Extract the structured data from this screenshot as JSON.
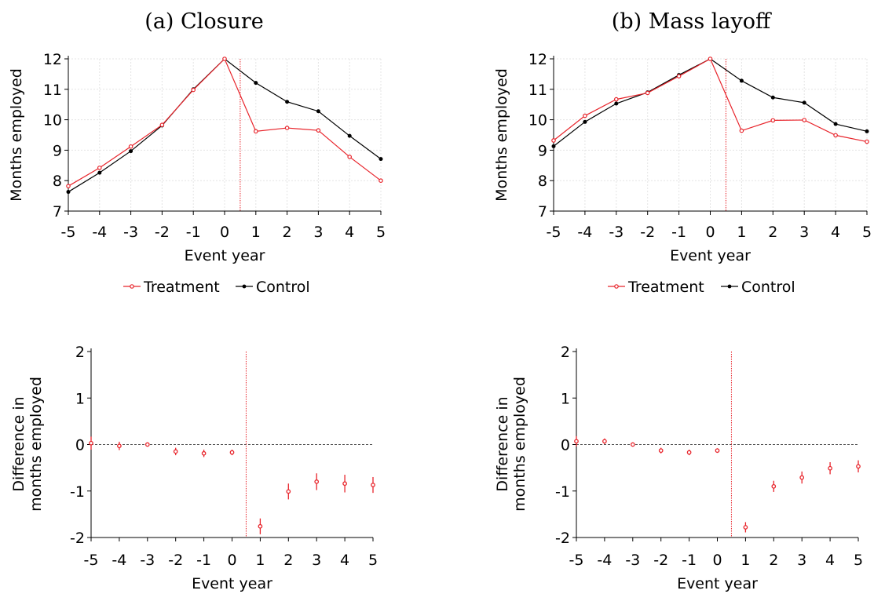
{
  "chart_data": [
    {
      "type": "line",
      "title": "(a) Closure",
      "xlabel": "Event year",
      "ylabel": "Months employed",
      "x": [
        -5,
        -4,
        -3,
        -2,
        -1,
        0,
        1,
        2,
        3,
        4,
        5
      ],
      "xlim": [
        -5,
        5
      ],
      "ylim": [
        7,
        12
      ],
      "yticks": [
        7,
        8,
        9,
        10,
        11,
        12
      ],
      "grid": true,
      "vline": 0.5,
      "legend": "bottom",
      "series": [
        {
          "name": "Treatment",
          "color": "#e8242b",
          "marker": "hollow-circle",
          "values": [
            7.82,
            8.42,
            9.12,
            9.83,
            10.98,
            12.0,
            9.62,
            9.73,
            9.65,
            8.78,
            8.0
          ]
        },
        {
          "name": "Control",
          "color": "#000000",
          "marker": "filled-circle",
          "values": [
            7.63,
            8.26,
            8.97,
            9.81,
            11.0,
            12.0,
            11.21,
            10.59,
            10.28,
            9.47,
            8.71
          ]
        }
      ]
    },
    {
      "type": "line",
      "title": "(b) Mass layoff",
      "xlabel": "Event year",
      "ylabel": "Months employed",
      "x": [
        -5,
        -4,
        -3,
        -2,
        -1,
        0,
        1,
        2,
        3,
        4,
        5
      ],
      "xlim": [
        -5,
        5
      ],
      "ylim": [
        7,
        12
      ],
      "yticks": [
        7,
        8,
        9,
        10,
        11,
        12
      ],
      "grid": true,
      "vline": 0.5,
      "legend": "bottom",
      "series": [
        {
          "name": "Treatment",
          "color": "#e8242b",
          "marker": "hollow-circle",
          "values": [
            9.32,
            10.13,
            10.67,
            10.88,
            11.43,
            12.0,
            9.64,
            9.98,
            9.99,
            9.49,
            9.28
          ]
        },
        {
          "name": "Control",
          "color": "#000000",
          "marker": "filled-circle",
          "values": [
            9.13,
            9.93,
            10.53,
            10.9,
            11.47,
            12.0,
            11.28,
            10.73,
            10.56,
            9.86,
            9.62
          ]
        }
      ]
    },
    {
      "type": "scatter",
      "title": "",
      "xlabel": "Event year",
      "ylabel": "Difference in months employed",
      "x": [
        -5,
        -4,
        -3,
        -2,
        -1,
        0,
        1,
        2,
        3,
        4,
        5
      ],
      "xlim": [
        -5,
        5
      ],
      "ylim": [
        -2,
        2
      ],
      "yticks": [
        -2,
        -1,
        0,
        1,
        2
      ],
      "grid": false,
      "hline": 0,
      "vline": 0.5,
      "series": [
        {
          "color": "#e8242b",
          "values": [
            0.03,
            -0.03,
            0.0,
            -0.15,
            -0.19,
            -0.17,
            -1.76,
            -1.01,
            -0.8,
            -0.84,
            -0.87
          ],
          "ci_low": [
            -0.11,
            -0.12,
            -0.02,
            -0.23,
            -0.27,
            -0.23,
            -1.93,
            -1.18,
            -0.98,
            -1.03,
            -1.04
          ],
          "ci_high": [
            0.17,
            0.06,
            0.02,
            -0.07,
            -0.11,
            -0.11,
            -1.59,
            -0.84,
            -0.62,
            -0.65,
            -0.7
          ]
        }
      ]
    },
    {
      "type": "scatter",
      "title": "",
      "xlabel": "Event year",
      "ylabel": "Difference in months employed",
      "x": [
        -5,
        -4,
        -3,
        -2,
        -1,
        0,
        1,
        2,
        3,
        4,
        5
      ],
      "xlim": [
        -5,
        5
      ],
      "ylim": [
        -2,
        2
      ],
      "yticks": [
        -2,
        -1,
        0,
        1,
        2
      ],
      "grid": false,
      "hline": 0,
      "vline": 0.5,
      "series": [
        {
          "color": "#e8242b",
          "values": [
            0.07,
            0.07,
            0.0,
            -0.13,
            -0.17,
            -0.13,
            -1.78,
            -0.9,
            -0.71,
            -0.51,
            -0.47
          ],
          "ci_low": [
            -0.04,
            0.01,
            -0.02,
            -0.19,
            -0.23,
            -0.18,
            -1.89,
            -1.02,
            -0.84,
            -0.64,
            -0.6
          ],
          "ci_high": [
            0.18,
            0.13,
            0.02,
            -0.07,
            -0.11,
            -0.08,
            -1.67,
            -0.78,
            -0.58,
            -0.38,
            -0.34
          ]
        }
      ]
    }
  ]
}
